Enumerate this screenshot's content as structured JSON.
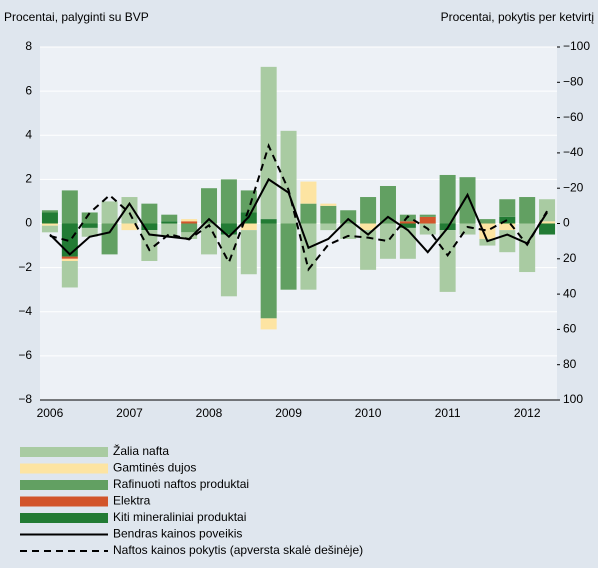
{
  "chart_data": {
    "type": "bar",
    "stacked": true,
    "y_label": "Procentai, palyginti su BVP",
    "y2_label": "Procentai, pokytis per ketvirtį",
    "categories": [
      "2006",
      null,
      null,
      null,
      "2007",
      null,
      null,
      null,
      "2008",
      null,
      null,
      null,
      "2009",
      null,
      null,
      null,
      "2010",
      null,
      null,
      null,
      "2011",
      null,
      null,
      null,
      "2012",
      null
    ],
    "ylim": [
      -8,
      8
    ],
    "yticks": [
      {
        "value": -8,
        "label": "−8"
      },
      {
        "value": -6,
        "label": "−6"
      },
      {
        "value": -4,
        "label": "−4"
      },
      {
        "value": -2,
        "label": "−2"
      },
      0,
      2,
      4,
      6,
      8
    ],
    "y2lim": [
      100,
      -100
    ],
    "y2_inverted": true,
    "y2ticks": [
      {
        "value": -100,
        "label": "−100"
      },
      {
        "value": -80,
        "label": "−80"
      },
      {
        "value": -60,
        "label": "−60"
      },
      {
        "value": -40,
        "label": "−40"
      },
      {
        "value": -20,
        "label": "−20"
      },
      0,
      20,
      40,
      60,
      80,
      100
    ],
    "grid": true,
    "legend": "bottom",
    "series": [
      {
        "name": "Žalia nafta",
        "color": "#a9cba2",
        "values": [
          -0.3,
          -1.2,
          -0.4,
          1.0,
          1.2,
          -1.4,
          -0.6,
          -0.3,
          -1.4,
          -2.8,
          -2.0,
          6.9,
          4.2,
          -3.0,
          -0.3,
          -0.7,
          -1.8,
          -1.6,
          -1.4,
          -0.5,
          -2.8,
          -0.5,
          -0.3,
          -1.0,
          -2.2,
          1.0
        ]
      },
      {
        "name": "Gamtinės dujos",
        "color": "#fde4a2",
        "values": [
          -0.1,
          -0.1,
          0,
          0,
          -0.3,
          0,
          0,
          0.1,
          0,
          0,
          -0.3,
          -0.5,
          0,
          1.0,
          0.1,
          0,
          -0.3,
          0,
          0,
          0,
          0,
          0,
          -0.7,
          -0.3,
          0,
          0.1
        ]
      },
      {
        "name": "Rafinuoti naftos produktai",
        "color": "#62a062",
        "values": [
          0.1,
          1.5,
          0.5,
          -1.4,
          0,
          0.9,
          0.3,
          -0.4,
          1.6,
          2.0,
          1.0,
          -4.3,
          -3.0,
          0.9,
          0.8,
          0.6,
          1.2,
          1.7,
          0.3,
          0.1,
          2.2,
          2.1,
          0.2,
          0.8,
          1.2,
          0
        ]
      },
      {
        "name": "Elektra",
        "color": "#d2552b",
        "values": [
          0,
          -0.1,
          0,
          0,
          0,
          0,
          0,
          0.1,
          0,
          0,
          0,
          0,
          0,
          0,
          0,
          0,
          0,
          0,
          0.1,
          0.3,
          0,
          0,
          0,
          0,
          0,
          0
        ]
      },
      {
        "name": "Kiti mineraliniai produktai",
        "color": "#227b34",
        "values": [
          0.5,
          -1.5,
          -0.2,
          0,
          0,
          -0.3,
          0.1,
          0,
          0,
          -0.5,
          0.5,
          0.2,
          0,
          0,
          0,
          0,
          0,
          0,
          -0.2,
          0,
          -0.3,
          0,
          0,
          0.3,
          0,
          -0.5
        ]
      },
      {
        "name": "Bendras kainos poveikis",
        "type": "line",
        "color": "#000000",
        "values": [
          -0.5,
          -1.4,
          -0.6,
          -0.4,
          0.9,
          -0.5,
          -0.6,
          -0.7,
          0.2,
          -0.6,
          0.3,
          2.0,
          1.4,
          -1.1,
          -0.7,
          0.2,
          -0.5,
          0.3,
          -0.3,
          -1.3,
          -0.2,
          1.3,
          -0.8,
          -0.5,
          -0.9,
          0.5
        ]
      },
      {
        "name": "Naftos kainos pokytis (apversta skalė dešinėje)",
        "type": "line",
        "dashed": true,
        "axis": "y2",
        "color": "#000000",
        "values": [
          7,
          10,
          -6,
          -16,
          -6,
          15,
          6,
          9,
          1,
          22,
          -8,
          -44,
          -19,
          26,
          12,
          7,
          8,
          10,
          -4,
          3,
          18,
          2,
          4,
          -2,
          12,
          -7
        ]
      }
    ]
  }
}
